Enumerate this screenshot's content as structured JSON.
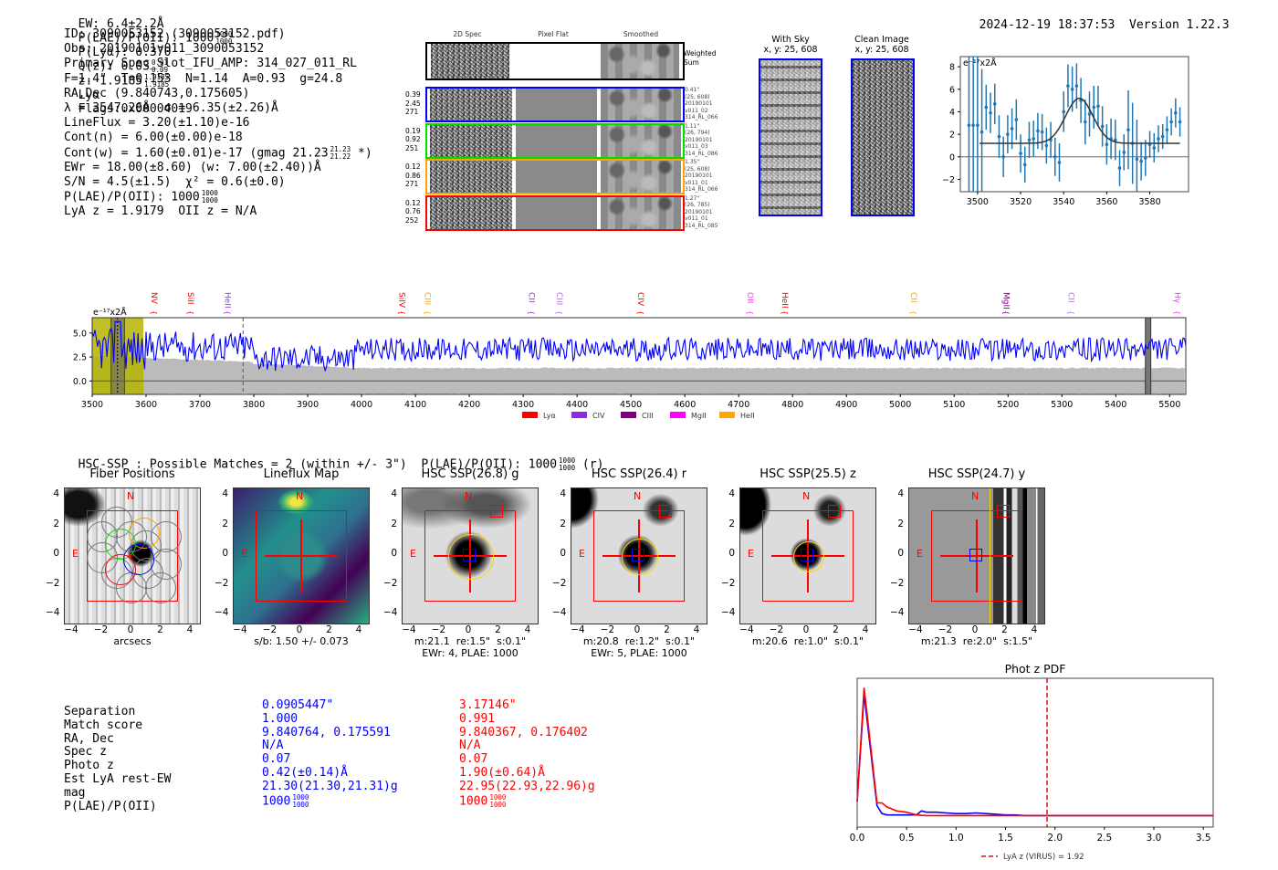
{
  "header": {
    "ew": "EW: 6.4±2.2Å",
    "plae_label": "P(LAE)/P(OII): 1000",
    "plae_hi": "1000",
    "plae_lo": "1000",
    "plya": "P(Lyα): 0.370",
    "qz_label": "Q(z): 0.03",
    "qz_hi": "0.01",
    "qz_lo": "0.09",
    "z_label": "z: 1.9185",
    "z_hi": "1.9185",
    "z_lo": "1.9185",
    "z_line": "Lyα",
    "flags": "Flags:0x00004019",
    "timestamp": "2024-12-19 18:37:53",
    "version": "Version 1.22.3"
  },
  "info": {
    "id": "ID: 3090053152 (3090053152.pdf)",
    "obs": "Obs: 20190101v011_3090053152",
    "primary": "Primary Spec_Slot_IFU_AMP: 314_027_011_RL",
    "params": "F=1.4\"  T=0.153  N=1.14  A=0.93  g=24.8",
    "radec": "RA,Dec (9.840743,0.175605)",
    "lambda": "λ = 3547.26Å  σ = 6.35(±2.26)Å",
    "lineflux": "LineFlux = 3.20(±1.10)e-16",
    "cont_n": "Cont(n) = 6.00(±0.00)e-18",
    "cont_w": "Cont(w) = 1.60(±0.01)e-17 (gmag 21.23",
    "cont_w_hi": "21.23",
    "cont_w_lo": "21.22",
    "cont_w_end": " *)",
    "ewr": "EWr = 18.00(±8.60) (w: 7.00(±2.40))Å",
    "sn": "S/N = 4.5(±1.5)  χ² = 0.6(±0.0)",
    "plae": "P(LAE)/P(OII): 1000",
    "plae_hi": "1000",
    "plae_lo": "1000",
    "z": "LyA z = 1.9179  OII z = N/A"
  },
  "spec2d": {
    "columns": [
      "2D Spec",
      "Pixel Flat",
      "Smoothed"
    ],
    "weighted_label": "Weighted Sum",
    "rows": [
      {
        "color": "#0000ff",
        "vals": [
          "0.39",
          "2.45",
          "271"
        ],
        "info": [
          "0.41\"",
          "(25, 608)",
          "20190101",
          "v011_02",
          "314_RL_066"
        ]
      },
      {
        "color": "#00dd00",
        "vals": [
          "0.19",
          "0.92",
          "251"
        ],
        "info": [
          "1.11\"",
          "(26, 794)",
          "20190101",
          "v011_03",
          "314_RL_086"
        ]
      },
      {
        "color": "#ffa500",
        "vals": [
          "0.12",
          "0.86",
          "271"
        ],
        "info": [
          "1.35\"",
          "(25, 608)",
          "20190101",
          "v011_01",
          "314_RL_066"
        ]
      },
      {
        "color": "#ff0000",
        "vals": [
          "0.12",
          "0.76",
          "252"
        ],
        "info": [
          "1.27\"",
          "(26, 785)",
          "20190101",
          "v011_01",
          "314_RL_085"
        ]
      }
    ]
  },
  "sky": {
    "with_sky_title": "With Sky",
    "with_sky_xy": "x, y: 25, 608",
    "clean_title": "Clean Image",
    "clean_xy": "x, y: 25, 608"
  },
  "chart_data": [
    {
      "type": "scatter",
      "name": "line-fit",
      "title": "",
      "ylabel": "e⁻¹⁷x2Å",
      "xlim": [
        3492,
        3598
      ],
      "ylim": [
        -3.1,
        8.9
      ],
      "xticks": [
        3500,
        3520,
        3540,
        3560,
        3580
      ],
      "yticks": [
        -2,
        0,
        2,
        4,
        6,
        8
      ],
      "points": {
        "x": [
          3496,
          3498,
          3500,
          3502,
          3504,
          3506,
          3508,
          3510,
          3512,
          3514,
          3516,
          3518,
          3520,
          3522,
          3524,
          3526,
          3528,
          3530,
          3532,
          3534,
          3536,
          3538,
          3540,
          3542,
          3544,
          3546,
          3548,
          3550,
          3552,
          3554,
          3556,
          3558,
          3560,
          3562,
          3564,
          3566,
          3568,
          3570,
          3572,
          3574,
          3576,
          3578,
          3580,
          3582,
          3584,
          3586,
          3588,
          3590,
          3592,
          3594
        ],
        "y": [
          2.8,
          2.8,
          2.8,
          2.2,
          4.4,
          3.9,
          4.7,
          1.8,
          0.0,
          2.0,
          2.5,
          3.3,
          0.3,
          -0.7,
          1.5,
          1.6,
          2.3,
          2.2,
          1.0,
          1.5,
          0.0,
          -0.5,
          4.0,
          6.3,
          6.0,
          6.3,
          5.0,
          3.1,
          3.8,
          4.4,
          4.5,
          2.7,
          1.1,
          1.6,
          1.5,
          -1.0,
          0.4,
          2.4,
          1.2,
          -0.2,
          -0.4,
          -0.1,
          1.1,
          0.8,
          1.6,
          1.8,
          2.4,
          3.1,
          3.9,
          3.1
        ],
        "err": [
          8,
          8,
          8,
          5.6,
          2.0,
          1.8,
          1.8,
          1.9,
          1.8,
          1.7,
          1.8,
          1.8,
          1.7,
          1.6,
          1.6,
          1.6,
          1.6,
          1.6,
          1.6,
          1.6,
          1.7,
          1.7,
          1.8,
          1.9,
          2.0,
          2.0,
          2.0,
          2.0,
          2.0,
          1.9,
          1.8,
          1.8,
          1.8,
          1.8,
          1.8,
          1.6,
          1.6,
          3.5,
          3.6,
          3.5,
          1.7,
          1.6,
          1.2,
          1.3,
          1.2,
          1.1,
          1.2,
          1.2,
          1.3,
          1.3
        ]
      },
      "fit": {
        "continuum": 1.2,
        "amplitude": 4.0,
        "center": 3547.26,
        "sigma": 6.35,
        "xrange": [
          3501,
          3594
        ]
      }
    },
    {
      "type": "line",
      "name": "full-spectrum",
      "ylabel": "e⁻¹⁷x2Å",
      "xlim": [
        3500,
        5530
      ],
      "ylim": [
        -1.4,
        6.6
      ],
      "xticks": [
        3500,
        3600,
        3700,
        3800,
        3900,
        4000,
        4100,
        4200,
        4300,
        4400,
        4500,
        4600,
        4700,
        4800,
        4900,
        5000,
        5100,
        5200,
        5300,
        5400,
        5500
      ],
      "yticks": [
        0.0,
        2.5,
        5.0
      ],
      "ytick_labels": [
        "0.0",
        "2.5",
        "5.0"
      ],
      "highlight_range": [
        3500,
        3595
      ],
      "marker_line": 3780,
      "sky_band": [
        5455,
        5465
      ],
      "line_labels": [
        {
          "name": "NV",
          "wave": 3615,
          "color": "#ff0000"
        },
        {
          "name": "SiII",
          "wave": 3683,
          "color": "#ff0000"
        },
        {
          "name": "HeII",
          "wave": 3752,
          "color": "#9933ff"
        },
        {
          "name": "SiIV",
          "wave": 4075,
          "color": "#ff0000"
        },
        {
          "name": "CIII",
          "wave": 4123,
          "color": "#ffa500"
        },
        {
          "name": "CII",
          "wave": 4316,
          "color": "#9933cc"
        },
        {
          "name": "CIII",
          "wave": 4368,
          "color": "#bb66ff"
        },
        {
          "name": "CIV",
          "wave": 4518,
          "color": "#ff0000"
        },
        {
          "name": "OII",
          "wave": 4722,
          "color": "#ff33ff"
        },
        {
          "name": "HeII",
          "wave": 4786,
          "color": "#ff0000"
        },
        {
          "name": "CII",
          "wave": 5025,
          "color": "#ffa500"
        },
        {
          "name": "MgII",
          "wave": 5197,
          "color": "#800080"
        },
        {
          "name": "CII",
          "wave": 5317,
          "color": "#bb66ff"
        },
        {
          "name": "Hγ",
          "wave": 5515,
          "color": "#ff33ff"
        }
      ],
      "legend": [
        {
          "label": "Lyα",
          "color": "#ff0000"
        },
        {
          "label": "CIV",
          "color": "#8a2be2"
        },
        {
          "label": "CIII",
          "color": "#800080"
        },
        {
          "label": "MgII",
          "color": "#ff00ff"
        },
        {
          "label": "HeII",
          "color": "#ffa500"
        }
      ],
      "series_mean": 3.3,
      "noise_level": 1.2
    },
    {
      "type": "line",
      "name": "phot-z-pdf",
      "title": "Phot z PDF",
      "xlim": [
        0.0,
        3.6
      ],
      "xticks": [
        0.0,
        0.5,
        1.0,
        1.5,
        2.0,
        2.5,
        3.0,
        3.5
      ],
      "xtick_labels": [
        "0.0",
        "0.5",
        "1.0",
        "1.5",
        "2.0",
        "2.5",
        "3.0",
        "3.5"
      ],
      "series": [
        {
          "name": "blue",
          "color": "#0000ff",
          "x": [
            0.0,
            0.07,
            0.2,
            0.25,
            0.3,
            0.4,
            0.5,
            0.6,
            0.65,
            0.7,
            0.8,
            0.9,
            1.0,
            1.1,
            1.2,
            1.3,
            1.4,
            1.5,
            1.6,
            1.7,
            3.6
          ],
          "y": [
            0.15,
            0.95,
            0.12,
            0.06,
            0.05,
            0.05,
            0.05,
            0.05,
            0.08,
            0.07,
            0.07,
            0.065,
            0.06,
            0.06,
            0.065,
            0.06,
            0.055,
            0.05,
            0.05,
            0.045,
            0.045
          ]
        },
        {
          "name": "red",
          "color": "#ff0000",
          "x": [
            0.0,
            0.07,
            0.2,
            0.25,
            0.3,
            0.4,
            0.5,
            0.6,
            0.7,
            0.8,
            1.0,
            1.5,
            2.0,
            3.6
          ],
          "y": [
            0.15,
            1.0,
            0.14,
            0.14,
            0.11,
            0.08,
            0.07,
            0.05,
            0.045,
            0.045,
            0.045,
            0.045,
            0.045,
            0.045
          ]
        }
      ],
      "vline": 1.92,
      "legend": "LyA z (VIRUS) = 1.92"
    }
  ],
  "hsc": {
    "summary": "HSC-SSP : Possible Matches = 2 (within +/- 3\")  P(LAE)/P(OII): 1000",
    "summary_hi": "1000",
    "summary_lo": "1000",
    "summary_end": " (r)",
    "cutouts": [
      {
        "title": "Fiber Positions",
        "sub1": "arcsecs",
        "sub2": ""
      },
      {
        "title": "Lineflux Map",
        "sub1": "s/b: 1.50 +/- 0.073",
        "sub2": ""
      },
      {
        "title": "HSC SSP(26.8) g",
        "sub1": "m:21.1  re:1.5\"  s:0.1\"",
        "sub2": "EWr: 4, PLAE: 1000"
      },
      {
        "title": "HSC SSP(26.4) r",
        "sub1": "m:20.8  re:1.2\"  s:0.1\"",
        "sub2": "EWr: 5, PLAE: 1000"
      },
      {
        "title": "HSC SSP(25.5) z",
        "sub1": "m:20.6  re:1.0\"  s:0.1\"",
        "sub2": ""
      },
      {
        "title": "HSC SSP(24.7) y",
        "sub1": "m:21.3  re:2.0\"  s:1.5\"",
        "sub2": ""
      }
    ],
    "axis_ticks": [
      "4",
      "2",
      "0",
      "−2",
      "−4"
    ],
    "xaxis_ticks": [
      "−4",
      "−2",
      "0",
      "2",
      "4"
    ],
    "north": "N",
    "east": "E"
  },
  "matches": {
    "labels": [
      "Separation",
      "Match score",
      "RA, Dec",
      "Spec z",
      "Photo z",
      "Est LyA rest-EW",
      "mag",
      "P(LAE)/P(OII)"
    ],
    "blue": [
      "0.0905447\"",
      "1.000",
      "9.840764, 0.175591",
      "N/A",
      "0.07",
      "0.42(±0.14)Å",
      "21.30(21.30,21.31)g",
      "1000"
    ],
    "red": [
      "3.17146\"",
      "0.991",
      "9.840367, 0.176402",
      "N/A",
      "0.07",
      "1.90(±0.64)Å",
      "22.95(22.93,22.96)g",
      "1000"
    ],
    "plae_hi": "1000",
    "plae_lo": "1000"
  }
}
